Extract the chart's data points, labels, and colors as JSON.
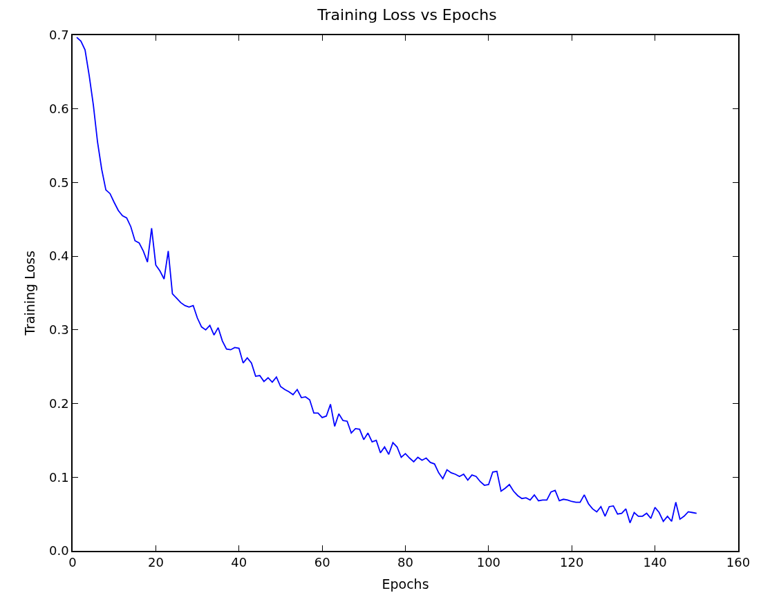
{
  "chart_data": {
    "type": "line",
    "title": "Training Loss vs Epochs",
    "xlabel": "Epochs",
    "ylabel": "Training Loss",
    "x": [
      1,
      2,
      3,
      4,
      5,
      6,
      7,
      8,
      9,
      10,
      11,
      12,
      13,
      14,
      15,
      16,
      17,
      18,
      19,
      20,
      21,
      22,
      23,
      24,
      25,
      26,
      27,
      28,
      29,
      30,
      31,
      32,
      33,
      34,
      35,
      36,
      37,
      38,
      39,
      40,
      41,
      42,
      43,
      44,
      45,
      46,
      47,
      48,
      49,
      50,
      51,
      52,
      53,
      54,
      55,
      56,
      57,
      58,
      59,
      60,
      61,
      62,
      63,
      64,
      65,
      66,
      67,
      68,
      69,
      70,
      71,
      72,
      73,
      74,
      75,
      76,
      77,
      78,
      79,
      80,
      81,
      82,
      83,
      84,
      85,
      86,
      87,
      88,
      89,
      90,
      91,
      92,
      93,
      94,
      95,
      96,
      97,
      98,
      99,
      100,
      101,
      102,
      103,
      104,
      105,
      106,
      107,
      108,
      109,
      110,
      111,
      112,
      113,
      114,
      115,
      116,
      117,
      118,
      119,
      120,
      121,
      122,
      123,
      124,
      125,
      126,
      127,
      128,
      129,
      130,
      131,
      132,
      133,
      134,
      135,
      136,
      137,
      138,
      139,
      140,
      141,
      142,
      143,
      144,
      145,
      146,
      147,
      148,
      149,
      150
    ],
    "series": [
      {
        "color": "#0000ff",
        "values": [
          0.697,
          0.692,
          0.68,
          0.645,
          0.605,
          0.555,
          0.518,
          0.49,
          0.485,
          0.473,
          0.462,
          0.455,
          0.452,
          0.44,
          0.421,
          0.418,
          0.407,
          0.392,
          0.438,
          0.388,
          0.38,
          0.369,
          0.407,
          0.349,
          0.343,
          0.337,
          0.333,
          0.331,
          0.333,
          0.316,
          0.304,
          0.3,
          0.306,
          0.293,
          0.303,
          0.285,
          0.274,
          0.273,
          0.276,
          0.275,
          0.255,
          0.262,
          0.255,
          0.237,
          0.238,
          0.23,
          0.235,
          0.229,
          0.236,
          0.223,
          0.219,
          0.216,
          0.212,
          0.219,
          0.208,
          0.209,
          0.205,
          0.187,
          0.187,
          0.181,
          0.183,
          0.199,
          0.169,
          0.186,
          0.177,
          0.176,
          0.16,
          0.166,
          0.165,
          0.151,
          0.16,
          0.148,
          0.15,
          0.133,
          0.141,
          0.131,
          0.147,
          0.141,
          0.127,
          0.132,
          0.126,
          0.121,
          0.127,
          0.123,
          0.126,
          0.12,
          0.118,
          0.106,
          0.098,
          0.11,
          0.106,
          0.104,
          0.101,
          0.104,
          0.096,
          0.103,
          0.101,
          0.094,
          0.089,
          0.09,
          0.107,
          0.108,
          0.081,
          0.085,
          0.09,
          0.081,
          0.075,
          0.071,
          0.072,
          0.069,
          0.076,
          0.068,
          0.069,
          0.069,
          0.08,
          0.082,
          0.068,
          0.07,
          0.069,
          0.067,
          0.066,
          0.066,
          0.076,
          0.064,
          0.057,
          0.053,
          0.06,
          0.047,
          0.06,
          0.061,
          0.05,
          0.051,
          0.057,
          0.038,
          0.052,
          0.047,
          0.047,
          0.051,
          0.044,
          0.059,
          0.052,
          0.04,
          0.047,
          0.04,
          0.066,
          0.043,
          0.047,
          0.053,
          0.052,
          0.051
        ]
      }
    ],
    "xlim": [
      0,
      160
    ],
    "xticks": [
      0,
      20,
      40,
      60,
      80,
      100,
      120,
      140,
      160
    ],
    "ylim": [
      0.0,
      0.7
    ],
    "yticks": [
      {
        "value": 0.0,
        "label": "0.0"
      },
      0.1,
      0.2,
      0.3,
      0.4,
      0.5,
      0.6,
      0.7
    ],
    "line_style": "solid"
  }
}
